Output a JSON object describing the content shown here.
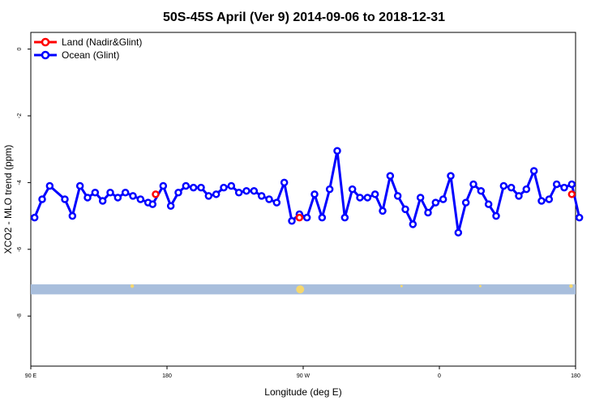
{
  "chart_data": {
    "type": "line",
    "title": "50S-45S April (Ver 9)   2014-09-06 to 2018-12-31",
    "xlabel": "Longitude (deg E)",
    "ylabel": "XCO2 - MLO trend (ppm)",
    "xlim": [
      90,
      450
    ],
    "ylim": [
      -9.5,
      0.5
    ],
    "x_ticks": [
      {
        "value": 90,
        "label": "90 E"
      },
      {
        "value": 180,
        "label": "180"
      },
      {
        "value": 270,
        "label": "90 W"
      },
      {
        "value": 360,
        "label": "0"
      },
      {
        "value": 450,
        "label": "180"
      }
    ],
    "y_ticks": [
      0,
      -2,
      -4,
      -6,
      -8
    ],
    "grid": false,
    "legend_position": "top-left",
    "colors": {
      "land": "#ff0000",
      "ocean": "#0000ff",
      "band": "#a8bedc",
      "land_marks": "#f5d76e"
    },
    "series": [
      {
        "name": "Land (Nadir&Glint)",
        "color": "#ff0000",
        "x": [
          172.5,
          267.5,
          447.5
        ],
        "y": [
          -4.35,
          -5.05,
          -4.35
        ]
      },
      {
        "name": "Ocean (Glint)",
        "color": "#0000ff",
        "x": [
          92.5,
          97.5,
          102.5,
          112.5,
          117.5,
          122.5,
          127.5,
          132.5,
          137.5,
          142.5,
          147.5,
          152.5,
          157.5,
          162.5,
          167.5,
          170.5,
          177.5,
          182.5,
          187.5,
          192.5,
          197.5,
          202.5,
          207.5,
          212.5,
          217.5,
          222.5,
          227.5,
          232.5,
          237.5,
          242.5,
          247.5,
          252.5,
          257.5,
          262.5,
          267.5,
          272.5,
          277.5,
          282.5,
          287.5,
          292.5,
          297.5,
          302.5,
          307.5,
          312.5,
          317.5,
          322.5,
          327.5,
          332.5,
          337.5,
          342.5,
          347.5,
          352.5,
          357.5,
          362.5,
          367.5,
          372.5,
          377.5,
          382.5,
          387.5,
          392.5,
          397.5,
          402.5,
          407.5,
          412.5,
          417.5,
          422.5,
          427.5,
          432.5,
          437.5,
          442.5,
          447.5,
          452.5
        ],
        "y": [
          -5.05,
          -4.5,
          -4.1,
          -4.5,
          -5.0,
          -4.1,
          -4.45,
          -4.3,
          -4.55,
          -4.3,
          -4.45,
          -4.3,
          -4.4,
          -4.5,
          -4.6,
          -4.65,
          -4.1,
          -4.7,
          -4.3,
          -4.1,
          -4.15,
          -4.15,
          -4.4,
          -4.35,
          -4.15,
          -4.1,
          -4.3,
          -4.25,
          -4.25,
          -4.4,
          -4.5,
          -4.6,
          -4.0,
          -5.15,
          -4.95,
          -5.05,
          -4.35,
          -5.05,
          -4.2,
          -3.05,
          -5.05,
          -4.2,
          -4.45,
          -4.45,
          -4.35,
          -4.85,
          -3.8,
          -4.4,
          -4.8,
          -5.25,
          -4.45,
          -4.9,
          -4.6,
          -4.5,
          -3.8,
          -5.5,
          -4.6,
          -4.05,
          -4.25,
          -4.65,
          -5.0,
          -4.1,
          -4.15,
          -4.4,
          -4.2,
          -3.65,
          -4.55,
          -4.5,
          -4.05,
          -4.15,
          -4.05,
          -5.05
        ]
      }
    ],
    "band": {
      "y_range": [
        -7.35,
        -7.05
      ]
    }
  }
}
